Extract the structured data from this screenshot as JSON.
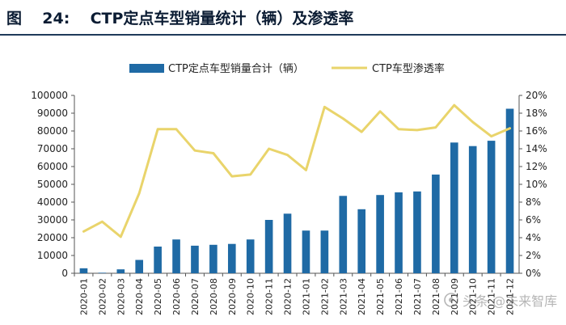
{
  "figure": {
    "label": "图",
    "number": "24:",
    "title": "CTP定点车型销量统计（辆）及渗透率"
  },
  "watermark": "头条 @未来智库",
  "colors": {
    "bar": "#1f6aa5",
    "line": "#e9d46b",
    "axis": "#555555",
    "title_rule": "#1f3a5a"
  },
  "chart_data": {
    "type": "bar",
    "title": "CTP定点车型销量统计（辆）及渗透率",
    "xlabel": "",
    "ylabel": "",
    "categories": [
      "2020-01",
      "2020-02",
      "2020-03",
      "2020-04",
      "2020-05",
      "2020-06",
      "2020-07",
      "2020-08",
      "2020-09",
      "2020-10",
      "2020-11",
      "2020-12",
      "2021-01",
      "2021-02",
      "2021-03",
      "2021-04",
      "2021-05",
      "2021-06",
      "2021-07",
      "2021-08",
      "2021-09",
      "2021-10",
      "2021-11",
      "2021-12"
    ],
    "series": [
      {
        "name": "CTP定点车型销量合计（辆）",
        "type": "bar",
        "axis": "left",
        "values": [
          2800,
          300,
          2200,
          7500,
          15000,
          19000,
          15500,
          16000,
          16500,
          19000,
          30000,
          33500,
          24000,
          24000,
          43500,
          36000,
          44000,
          45500,
          46000,
          55500,
          73500,
          71500,
          74500,
          92500
        ]
      },
      {
        "name": "CTP车型渗透率",
        "type": "line",
        "axis": "right",
        "values": [
          4.7,
          5.8,
          4.1,
          9.0,
          16.2,
          16.2,
          13.8,
          13.5,
          10.9,
          11.1,
          14.0,
          13.3,
          11.6,
          18.7,
          17.4,
          15.9,
          18.2,
          16.2,
          16.1,
          16.4,
          18.9,
          17.0,
          15.4,
          16.3
        ]
      }
    ],
    "ylim": [
      0,
      100000
    ],
    "yticks": [
      "0",
      "10000",
      "20000",
      "30000",
      "40000",
      "50000",
      "60000",
      "70000",
      "80000",
      "90000",
      "100000"
    ],
    "y2lim": [
      0,
      20
    ],
    "y2ticks": [
      "0%",
      "2%",
      "4%",
      "6%",
      "8%",
      "10%",
      "12%",
      "14%",
      "16%",
      "18%",
      "20%"
    ],
    "grid": false,
    "legend": "top-center"
  }
}
